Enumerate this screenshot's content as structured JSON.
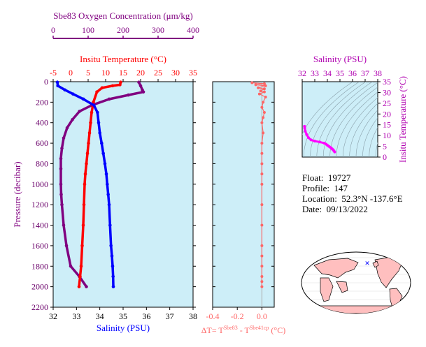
{
  "info": {
    "float_label": "Float:",
    "float_value": "19727",
    "profile_label": "Profile:",
    "profile_value": "147",
    "location_label": "Location:",
    "location_value": "52.3°N  -137.6°E",
    "date_label": "Date:",
    "date_value": "09/13/2022"
  },
  "colors": {
    "oxygen": "#800080",
    "temperature": "#ff0000",
    "salinity": "#0000ff",
    "delta_t": "#ff6666",
    "ts": "#ff00ff",
    "panel_bg": "#cdeef8",
    "land": "#ffbfbf"
  },
  "chart_data": [
    {
      "type": "line",
      "id": "profile",
      "ylabel": "Pressure (decibar)",
      "ylim": [
        2200,
        0
      ],
      "y_ticks": [
        0,
        200,
        400,
        600,
        800,
        1000,
        1200,
        1400,
        1600,
        1800,
        2000,
        2200
      ],
      "axes": {
        "oxygen": {
          "label": "Sbe83 Oxygen Concentration (μm/kg)",
          "range": [
            0,
            400
          ],
          "ticks": [
            0,
            100,
            200,
            300,
            400
          ]
        },
        "temperature": {
          "label": "Insitu Temperature (°C)",
          "range": [
            -5,
            35
          ],
          "ticks": [
            -5,
            0,
            5,
            10,
            15,
            20,
            25,
            30,
            35
          ]
        },
        "salinity": {
          "label": "Salinity (PSU)",
          "range": [
            32,
            38
          ],
          "ticks": [
            32,
            33,
            34,
            35,
            36,
            37,
            38
          ]
        }
      },
      "series": [
        {
          "key": "oxygen",
          "axis": "oxygen",
          "x": [
            245,
            250,
            255,
            258,
            215,
            160,
            110,
            75,
            55,
            40,
            30,
            25,
            22,
            22,
            22,
            23,
            25,
            30,
            38,
            50,
            75,
            95
          ],
          "y": [
            5,
            40,
            80,
            100,
            130,
            170,
            230,
            290,
            370,
            450,
            550,
            650,
            750,
            850,
            1000,
            1100,
            1200,
            1400,
            1600,
            1800,
            1900,
            2000
          ]
        },
        {
          "key": "temperature",
          "axis": "temperature",
          "x": [
            14.3,
            14.1,
            12.0,
            9.0,
            7.5,
            6.5,
            6.0,
            5.7,
            5.4,
            5.1,
            4.8,
            4.5,
            4.2,
            4.0,
            3.8,
            3.6,
            3.3,
            3.0,
            2.7,
            2.4
          ],
          "y": [
            5,
            30,
            40,
            60,
            100,
            200,
            300,
            400,
            500,
            600,
            700,
            800,
            900,
            1000,
            1200,
            1400,
            1600,
            1800,
            1900,
            2000
          ]
        },
        {
          "key": "salinity",
          "axis": "salinity",
          "x": [
            32.18,
            32.2,
            32.5,
            32.85,
            33.3,
            33.75,
            33.9,
            33.95,
            34.0,
            34.08,
            34.15,
            34.22,
            34.28,
            34.32,
            34.36,
            34.4,
            34.44,
            34.48,
            34.52,
            34.55,
            34.57,
            34.58
          ],
          "y": [
            5,
            40,
            80,
            120,
            170,
            230,
            300,
            400,
            500,
            600,
            700,
            800,
            900,
            1000,
            1100,
            1200,
            1400,
            1600,
            1700,
            1800,
            1900,
            2000
          ]
        }
      ]
    },
    {
      "type": "scatter",
      "id": "delta_t",
      "xlabel_main": "ΔT= T",
      "xlabel_sup1": "Sbe83",
      "xlabel_mid": " - T",
      "xlabel_sup2": "Sbe41cp",
      "xlabel_unit": " (°C)",
      "xlim": [
        -0.4,
        0.1
      ],
      "x_ticks": [
        -0.4,
        -0.2,
        0.0
      ],
      "x_tick_labels": [
        "-0.4",
        "-0.2",
        "0.0"
      ],
      "ylim": [
        2200,
        0
      ],
      "x": [
        -0.08,
        0.02,
        -0.05,
        0.03,
        -0.03,
        0.02,
        -0.01,
        0.02,
        -0.02,
        0.03,
        0.01,
        0.0,
        0.02,
        0.01,
        0.0,
        0.01,
        0.0,
        0.0,
        0.0,
        0.0,
        0.0,
        0.0,
        0.0,
        0.0,
        0.0,
        0.0,
        0.0,
        0.0,
        0.0
      ],
      "y": [
        10,
        20,
        30,
        40,
        60,
        70,
        90,
        100,
        120,
        150,
        200,
        250,
        300,
        350,
        400,
        500,
        600,
        700,
        800,
        900,
        1000,
        1200,
        1400,
        1600,
        1700,
        1800,
        1900,
        1950,
        2000
      ]
    },
    {
      "type": "scatter",
      "id": "ts",
      "title": "Salinity (PSU)",
      "ylabel": "Insitu Temperature (°C)",
      "xlim": [
        32,
        38
      ],
      "ylim": [
        0,
        35
      ],
      "x_ticks": [
        32,
        33,
        34,
        35,
        36,
        37,
        38
      ],
      "y_ticks": [
        0,
        5,
        10,
        15,
        20,
        25,
        30,
        35
      ],
      "x": [
        34.58,
        34.52,
        34.45,
        34.38,
        34.3,
        34.22,
        34.12,
        34.0,
        33.9,
        33.75,
        33.4,
        33.0,
        32.7,
        32.5,
        32.35,
        32.25,
        32.2,
        32.18
      ],
      "y": [
        2.4,
        2.9,
        3.4,
        3.8,
        4.2,
        4.6,
        5.0,
        5.5,
        6.0,
        6.5,
        7.0,
        7.4,
        8.0,
        9.0,
        10.5,
        12.0,
        13.5,
        14.3
      ]
    }
  ]
}
